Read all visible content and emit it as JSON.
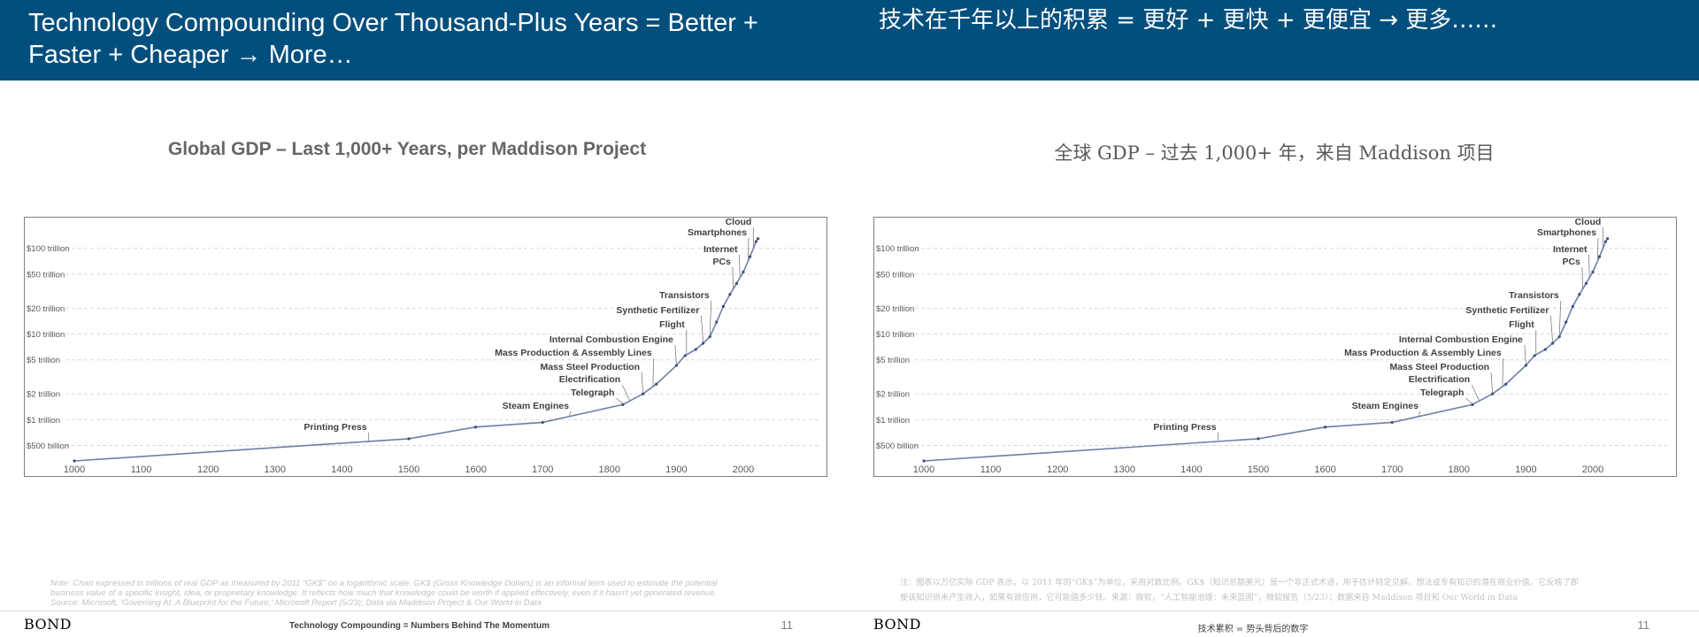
{
  "left": {
    "title": "Technology Compounding Over Thousand-Plus Years = Better + Faster + Cheaper → More…",
    "chart_title": "Global GDP – Last 1,000+ Years, per Maddison Project",
    "note_lines": [
      "Note: Chart expressed in trillions of real GDP as measured by 2011 \"GK$\" on a logarithmic scale. GK$ (Gross Knowledge Dollars) is an informal term used to estimate the potential",
      "business value of a specific insight, idea, or proprietary knowledge. It reflects how much that knowledge could be worth if applied effectively, even if it hasn't yet generated revenue.",
      "Source: Microsoft, 'Governing AI: A Blueprint for the Future,' Microsoft Report (5/23); Data via Maddison Project & Our World in Data"
    ],
    "logo": "BOND",
    "footer": "Technology Compounding = Numbers Behind The Momentum",
    "page_number": "11"
  },
  "right": {
    "title": "技术在千年以上的积累 = 更好 + 更快 + 更便宜 → 更多……",
    "chart_title": "全球 GDP – 过去 1,000+ 年，来自 Maddison 项目",
    "note_lines": [
      "注：图表以万亿实际 GDP 表示，以 2011 年的“GK$”为单位，采用对数比例。GK$（知识总额美元）是一个非正式术语，用于估计特定见解、想法或专有知识的潜在商业价值。它反映了即",
      "使该知识尚未产生收入，如果有效应用，它可能值多少钱。来源：微软，“人工智能治理：未来蓝图”，微软报告（5/23）；数据来自 Maddison 项目和 Our World in Data"
    ],
    "logo": "BOND",
    "footer": "技术累积 = 势头背后的数字",
    "page_number": "11"
  },
  "colors": {
    "header_bg": "#024f7d",
    "line": "#6d7fa6",
    "point": "#3a4f80"
  },
  "chart_data": [
    {
      "type": "line",
      "title": "Global GDP – Last 1,000+ Years, per Maddison Project",
      "xlabel": "",
      "ylabel": "",
      "y_scale": "log",
      "xlim": [
        1000,
        2023
      ],
      "ylim": [
        0.33,
        180
      ],
      "x_ticks": [
        1000,
        1100,
        1200,
        1300,
        1400,
        1500,
        1600,
        1700,
        1800,
        1900,
        2000
      ],
      "y_ticks": [
        {
          "value": 0.5,
          "label": "$500 billion"
        },
        {
          "value": 1,
          "label": "$1 trillion"
        },
        {
          "value": 2,
          "label": "$2 trillion"
        },
        {
          "value": 5,
          "label": "$5 trillion"
        },
        {
          "value": 10,
          "label": "$10 trillion"
        },
        {
          "value": 20,
          "label": "$20 trillion"
        },
        {
          "value": 50,
          "label": "$50 trillion"
        },
        {
          "value": 100,
          "label": "$100 trillion"
        }
      ],
      "grid": true,
      "series": [
        {
          "x": [
            1000,
            1500,
            1600,
            1700,
            1820,
            1850,
            1870,
            1900,
            1913,
            1929,
            1940,
            1950,
            1960,
            1970,
            1980,
            1990,
            2000,
            2010,
            2019,
            2022
          ],
          "y": [
            0.33,
            0.6,
            0.82,
            0.93,
            1.5,
            2.0,
            2.6,
            4.3,
            5.6,
            6.6,
            7.8,
            9.3,
            13.8,
            21,
            29,
            39,
            53,
            80,
            120,
            130
          ]
        }
      ],
      "annotations": [
        {
          "label": "Printing Press",
          "x": 1440
        },
        {
          "label": "Steam Engines",
          "x": 1740
        },
        {
          "label": "Telegraph",
          "x": 1820
        },
        {
          "label": "Electrification",
          "x": 1830
        },
        {
          "label": "Mass Steel Production",
          "x": 1850
        },
        {
          "label": "Mass Production & Assembly Lines",
          "x": 1865
        },
        {
          "label": "Internal Combustion Engine",
          "x": 1900
        },
        {
          "label": "Flight",
          "x": 1915
        },
        {
          "label": "Synthetic Fertilizer",
          "x": 1940
        },
        {
          "label": "Transistors",
          "x": 1950
        },
        {
          "label": "PCs",
          "x": 1985
        },
        {
          "label": "Internet",
          "x": 1995
        },
        {
          "label": "Smartphones",
          "x": 2007
        },
        {
          "label": "Cloud",
          "x": 2015
        }
      ]
    }
  ]
}
